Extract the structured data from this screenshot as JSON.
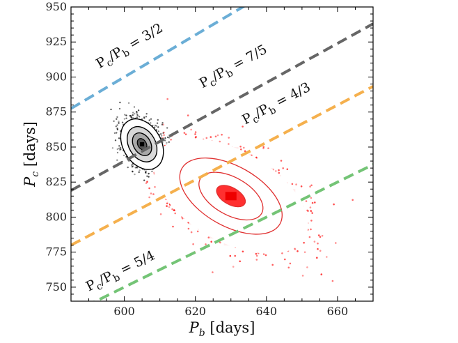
{
  "chart_data": {
    "type": "scatter",
    "title": "",
    "xlabel": "P_b [days]",
    "ylabel": "P_c [days]",
    "xlabel_main": "P",
    "xlabel_sub": "b",
    "xlabel_unit": " [days]",
    "ylabel_main": "P",
    "ylabel_sub": "c",
    "ylabel_unit": " [days]",
    "xlim": [
      585,
      670
    ],
    "ylim": [
      740,
      950
    ],
    "xticks": [
      600,
      620,
      640,
      660
    ],
    "yticks": [
      750,
      775,
      800,
      825,
      850,
      875,
      900,
      925,
      950
    ],
    "grid": false,
    "resonance_lines": [
      {
        "ratio": 1.5,
        "label": "P_c/P_b = 3/2",
        "fraction": "3/2",
        "color": "#6baed6"
      },
      {
        "ratio": 1.4,
        "label": "P_c/P_b = 7/5",
        "fraction": "7/5",
        "color": "#666666"
      },
      {
        "ratio": 1.3333,
        "label": "P_c/P_b = 4/3",
        "fraction": "4/3",
        "color": "#f5b04d"
      },
      {
        "ratio": 1.25,
        "label": "P_c/P_b = 5/4",
        "fraction": "5/4",
        "color": "#74c476"
      }
    ],
    "series": [
      {
        "name": "black posterior",
        "color": "#000000",
        "center": [
          605,
          852
        ],
        "spread": [
          3,
          9
        ],
        "corr": -0.3,
        "peak": [
          605,
          852
        ],
        "contour_levels": [
          1,
          2,
          3
        ]
      },
      {
        "name": "red posterior",
        "color": "#ff0000",
        "center": [
          630,
          815
        ],
        "spread": [
          9,
          17
        ],
        "corr": -0.5,
        "peak": [
          630,
          815
        ],
        "contour_levels": [
          1,
          2,
          3
        ]
      }
    ]
  }
}
